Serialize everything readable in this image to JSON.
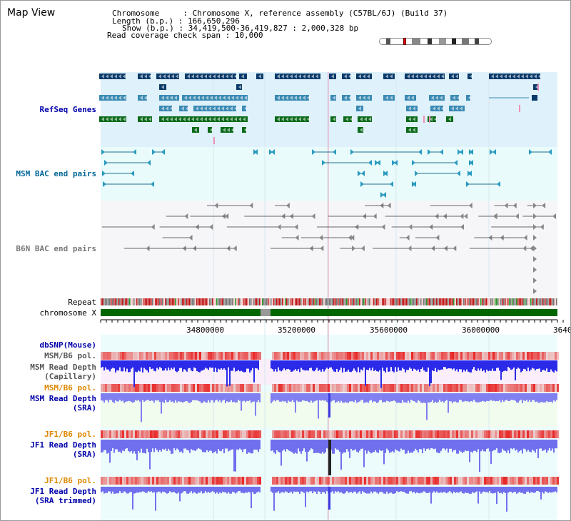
{
  "title": "Map View",
  "header": {
    "chromosome_label": "Chromosome     : ",
    "chromosome_value": "Chromosome X, reference assembly (C57BL/6J) (Build 37)",
    "length_label": "Length (b.p.) : ",
    "length_value": "166,650,296",
    "show_label": "Show (b.p.) : ",
    "show_value": "34,419,500-36,419,827 : 2,000,328 bp",
    "span_label": "Read coverage check span : ",
    "span_value": "10,000"
  },
  "tracks": {
    "refseq": "RefSeq Genes",
    "msm_bac": "MSM BAC end pairs",
    "b6n_bac": "B6N BAC end pairs",
    "repeat": "Repeat",
    "chromosome": "chromosome X",
    "dbsnp": "dbSNP(Mouse)",
    "msm_b6_pol": "MSM/B6 pol.",
    "msm_depth_cap_1": "MSM Read Depth",
    "msm_depth_cap_2": "(Capillary)",
    "msm_b6_pol_2": "MSM/B6 pol.",
    "msm_depth_sra_1": "MSM Read Depth",
    "msm_depth_sra_2": "(SRA)",
    "jf1_pol": "JF1/B6 pol.",
    "jf1_depth_1": "JF1 Read Depth",
    "jf1_depth_2": "(SRA)",
    "jf1_pol_2": "JF1/B6 pol.",
    "jf1_trim_1": "JF1 Read Depth",
    "jf1_trim_2": "(SRA trimmed)"
  },
  "axis": {
    "ticks": [
      "34800000",
      "35200000",
      "35600000",
      "36000000",
      "3640"
    ]
  },
  "colors": {
    "refseq_bg": "#dff1fb",
    "bac_bg": "#e9fbfb",
    "b6n_bg": "#f3f3f7",
    "chrom_green": "#006600",
    "pol_red": "#e83030",
    "depth_blue": "#3838f0",
    "depth_light": "#7878ef"
  }
}
